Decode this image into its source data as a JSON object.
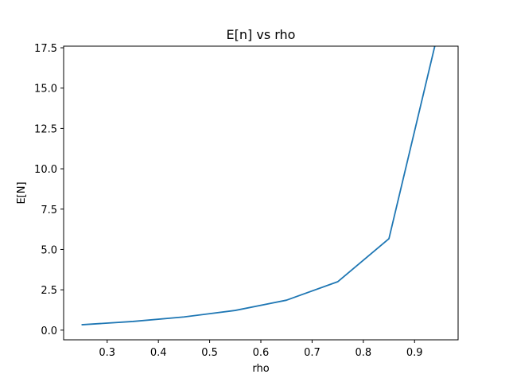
{
  "chart_data": {
    "type": "line",
    "title": "E[n] vs rho",
    "xlabel": "rho",
    "ylabel": "E[N]",
    "x": [
      0.25,
      0.35,
      0.45,
      0.55,
      0.65,
      0.75,
      0.85,
      0.95
    ],
    "series": [
      {
        "values": [
          0.333,
          0.538,
          0.818,
          1.222,
          1.857,
          3.0,
          5.667,
          19.0
        ],
        "color": "#1f77b4"
      }
    ],
    "xlim": [
      0.215,
      0.985
    ],
    "ylim": [
      -0.6,
      17.6
    ],
    "xticks": [
      0.3,
      0.4,
      0.5,
      0.6,
      0.7,
      0.8,
      0.9
    ],
    "xtick_labels": [
      "0.3",
      "0.4",
      "0.5",
      "0.6",
      "0.7",
      "0.8",
      "0.9"
    ],
    "yticks": [
      0.0,
      2.5,
      5.0,
      7.5,
      10.0,
      12.5,
      15.0,
      17.5
    ],
    "ytick_labels": [
      "0.0",
      "2.5",
      "5.0",
      "7.5",
      "10.0",
      "12.5",
      "15.0",
      "17.5"
    ],
    "grid": false,
    "legend": "none"
  }
}
